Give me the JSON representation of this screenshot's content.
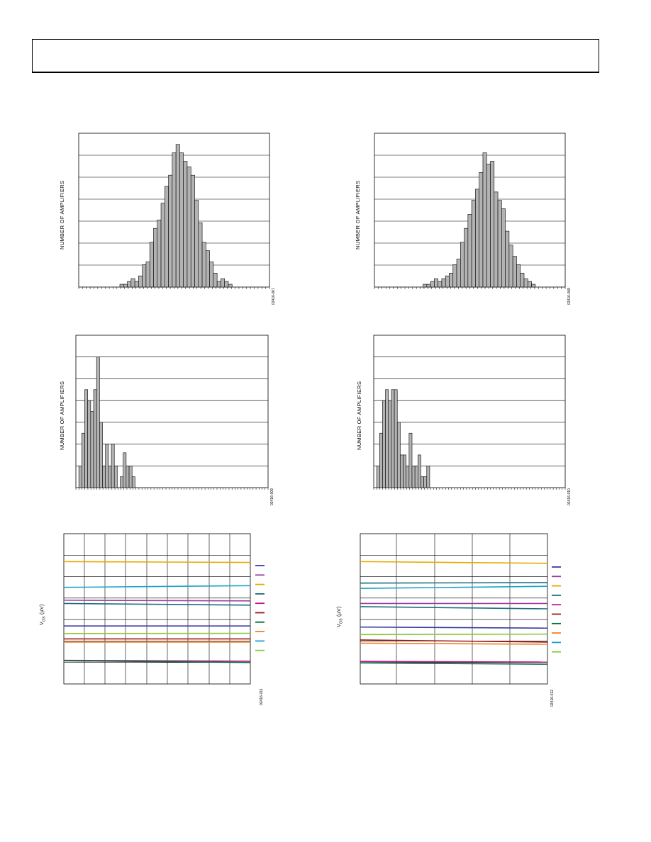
{
  "page": {
    "header_text": ""
  },
  "histogram_axis_label": "NUMBER OF AMPLIFIERS",
  "vos_axis_label_main": "V",
  "vos_axis_label_sub": "OS",
  "vos_axis_label_unit": "(µV)",
  "chart_data": [
    {
      "type": "bar",
      "ylabel": "NUMBER OF AMPLIFIERS",
      "figure_id": "02416-007",
      "values": [
        0,
        0,
        0,
        0,
        0,
        0,
        0,
        0,
        0,
        0,
        0,
        1,
        1,
        2,
        3,
        2,
        4,
        8,
        9,
        16,
        21,
        24,
        30,
        36,
        40,
        48,
        51,
        48,
        45,
        43,
        40,
        31,
        23,
        16,
        13,
        9,
        5,
        2,
        3,
        2,
        1,
        0,
        0,
        0,
        0,
        0,
        0,
        0,
        0,
        0,
        0
      ],
      "ylim": [
        0,
        55
      ]
    },
    {
      "type": "bar",
      "ylabel": "NUMBER OF AMPLIFIERS",
      "figure_id": "02416-008",
      "values": [
        0,
        0,
        0,
        0,
        0,
        0,
        0,
        0,
        0,
        0,
        0,
        0,
        0,
        1,
        1,
        2,
        3,
        2,
        3,
        4,
        5,
        8,
        10,
        16,
        21,
        26,
        31,
        35,
        41,
        48,
        44,
        45,
        34,
        31,
        28,
        20,
        15,
        11,
        8,
        5,
        3,
        2,
        1,
        0,
        0,
        0,
        0,
        0,
        0,
        0,
        0
      ],
      "ylim": [
        0,
        55
      ]
    },
    {
      "type": "bar",
      "ylabel": "NUMBER OF AMPLIFIERS",
      "figure_id": "02416-009",
      "values": [
        0,
        1,
        2.5,
        4.5,
        4,
        3.5,
        4.5,
        6,
        3,
        1,
        2,
        1,
        2,
        1,
        0,
        0.5,
        1.6,
        1,
        1,
        0.5,
        0,
        0,
        0,
        0,
        0,
        0,
        0,
        0,
        0,
        0,
        0,
        0,
        0,
        0,
        0,
        0,
        0,
        0,
        0,
        0,
        0,
        0,
        0,
        0,
        0,
        0,
        0,
        0,
        0,
        0,
        0,
        0,
        0,
        0,
        0,
        0,
        0,
        0,
        0,
        0,
        0,
        0,
        0,
        0,
        0
      ],
      "ylim": [
        0,
        7
      ]
    },
    {
      "type": "bar",
      "ylabel": "NUMBER OF AMPLIFIERS",
      "figure_id": "02416-010",
      "values": [
        0,
        1,
        2.5,
        4,
        4.5,
        4,
        4.5,
        4.5,
        3,
        1.5,
        1.5,
        1,
        2.5,
        1,
        1,
        1.5,
        0.5,
        0.5,
        1,
        0,
        0,
        0,
        0,
        0,
        0,
        0,
        0,
        0,
        0,
        0,
        0,
        0,
        0,
        0,
        0,
        0,
        0,
        0,
        0,
        0,
        0,
        0,
        0,
        0,
        0,
        0,
        0,
        0,
        0,
        0,
        0,
        0,
        0,
        0,
        0,
        0,
        0,
        0,
        0,
        0,
        0,
        0,
        0,
        0,
        0
      ],
      "ylim": [
        0,
        7
      ]
    },
    {
      "type": "line",
      "ylabel": "VOS (µV)",
      "figure_id": "02416-011",
      "ylim": [
        0,
        7
      ],
      "series": [
        {
          "color": "#e8a900",
          "values": [
            5.7,
            5.66
          ]
        },
        {
          "color": "#1aa3c9",
          "values": [
            4.5,
            4.58
          ]
        },
        {
          "color": "#9b3fa0",
          "values": [
            3.9,
            3.87
          ]
        },
        {
          "color": "#1d6d7a",
          "values": [
            3.75,
            3.67
          ]
        },
        {
          "color": "#3d3aa0",
          "values": [
            2.7,
            2.7
          ]
        },
        {
          "color": "#8dc63f",
          "values": [
            2.35,
            2.36
          ]
        },
        {
          "color": "#9a1c1c",
          "values": [
            2.1,
            2.1
          ]
        },
        {
          "color": "#f47f20",
          "values": [
            1.95,
            1.95
          ]
        },
        {
          "color": "#c0188c",
          "values": [
            1.1,
            1.06
          ]
        },
        {
          "color": "#006f3c",
          "values": [
            1.08,
            1.0
          ]
        }
      ],
      "legend_colors": [
        "#3d3aa0",
        "#9b3fa0",
        "#e8a900",
        "#1d6d7a",
        "#c0188c",
        "#9a1c1c",
        "#006f3c",
        "#f47f20",
        "#1aa3c9",
        "#8dc63f"
      ]
    },
    {
      "type": "line",
      "ylabel": "VOS (µV)",
      "figure_id": "02416-012",
      "ylim": [
        0,
        7
      ],
      "series": [
        {
          "color": "#e8a900",
          "values": [
            5.7,
            5.62
          ]
        },
        {
          "color": "#1d6d7a",
          "values": [
            4.7,
            4.72
          ]
        },
        {
          "color": "#1aa3c9",
          "values": [
            4.45,
            4.55
          ]
        },
        {
          "color": "#9b3fa0",
          "values": [
            3.75,
            3.75
          ]
        },
        {
          "color": "#1d6d7a",
          "values": [
            3.6,
            3.5
          ]
        },
        {
          "color": "#3d3aa0",
          "values": [
            2.65,
            2.6
          ]
        },
        {
          "color": "#8dc63f",
          "values": [
            2.3,
            2.32
          ]
        },
        {
          "color": "#9a1c1c",
          "values": [
            2.05,
            1.95
          ]
        },
        {
          "color": "#f47f20",
          "values": [
            1.9,
            1.85
          ]
        },
        {
          "color": "#c0188c",
          "values": [
            1.05,
            1.02
          ]
        },
        {
          "color": "#006f3c",
          "values": [
            0.98,
            0.92
          ]
        }
      ],
      "legend_colors": [
        "#3d3aa0",
        "#9b3fa0",
        "#e8a900",
        "#1d6d7a",
        "#c0188c",
        "#9a1c1c",
        "#006f3c",
        "#f47f20",
        "#1aa3c9",
        "#8dc63f"
      ]
    }
  ]
}
